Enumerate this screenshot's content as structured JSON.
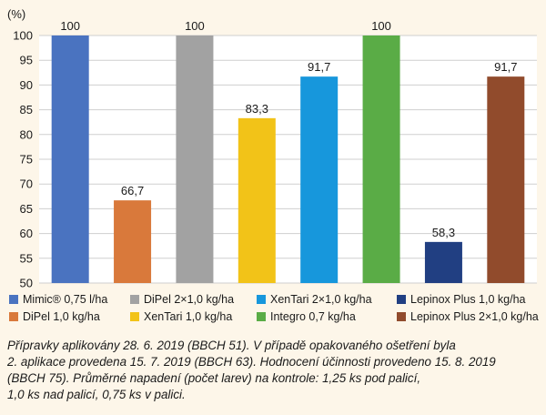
{
  "chart_data": {
    "type": "bar",
    "unit_label": "(%)",
    "ylim": [
      50,
      100
    ],
    "yticks": [
      50,
      55,
      60,
      65,
      70,
      75,
      80,
      85,
      90,
      95,
      100
    ],
    "grid": true,
    "categories": [
      "Mimic® 0,75 l/ha",
      "DiPel 1,0 kg/ha",
      "DiPel 2×1,0 kg/ha",
      "XenTari 1,0 kg/ha",
      "XenTari 2×1,0 kg/ha",
      "Integro 0,7 kg/ha",
      "Lepinox Plus 1,0 kg/ha",
      "Lepinox Plus 2×1,0 kg/ha"
    ],
    "values": [
      100,
      66.7,
      100,
      83.3,
      91.7,
      100,
      58.3,
      91.7
    ],
    "data_labels": [
      "100",
      "66,7",
      "100",
      "83,3",
      "91,7",
      "100",
      "58,3",
      "91,7"
    ],
    "colors": [
      "#4a73c0",
      "#d9793b",
      "#a2a2a2",
      "#f2c318",
      "#1797dc",
      "#5aac46",
      "#213f82",
      "#914b2c"
    ],
    "legend_placement": "bottom"
  },
  "legend_items": [
    {
      "label": "Mimic® 0,75 l/ha",
      "color": "#4a73c0"
    },
    {
      "label": "DiPel 2×1,0 kg/ha",
      "color": "#a2a2a2"
    },
    {
      "label": "XenTari 2×1,0 kg/ha",
      "color": "#1797dc"
    },
    {
      "label": "Lepinox Plus 1,0 kg/ha",
      "color": "#213f82"
    },
    {
      "label": "DiPel 1,0 kg/ha",
      "color": "#d9793b"
    },
    {
      "label": "XenTari 1,0 kg/ha",
      "color": "#f2c318"
    },
    {
      "label": "Integro 0,7 kg/ha",
      "color": "#5aac46"
    },
    {
      "label": "Lepinox Plus 2×1,0 kg/ha",
      "color": "#914b2c"
    }
  ],
  "caption_lines": [
    "Přípravky aplikovány 28. 6. 2019 (BBCH 51). V případě opakovaného ošetření byla",
    "2. aplikace provedena 15. 7. 2019 (BBCH 63). Hodnocení účinnosti provedeno 15. 8. 2019",
    "(BBCH 75). Průměrné napadení (počet larev) na kontrole: 1,25 ks pod palicí,",
    "1,0 ks nad palicí, 0,75 ks v palici."
  ]
}
